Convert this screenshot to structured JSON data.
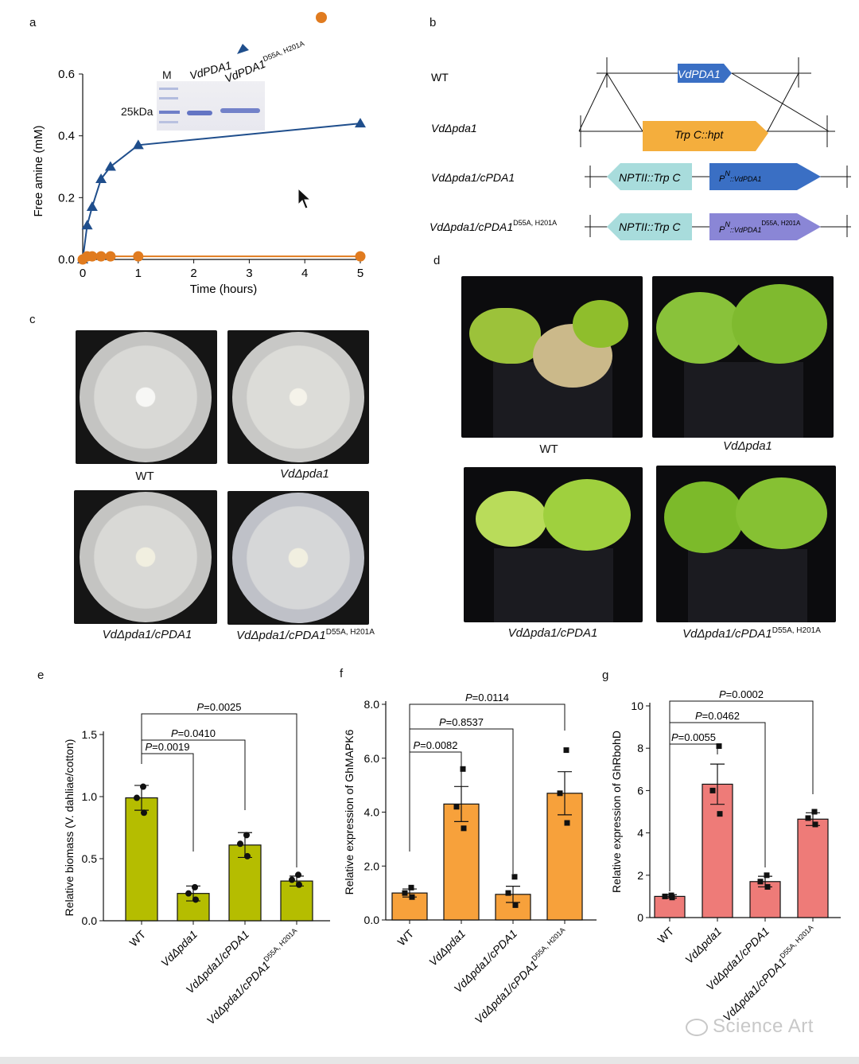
{
  "panels": {
    "a": "a",
    "b": "b",
    "c": "c",
    "d": "d",
    "e": "e",
    "f": "f",
    "g": "g"
  },
  "panel_a": {
    "ylabel": "Free amine (mM)",
    "xlabel": "Time (hours)",
    "gel": {
      "lane_m": "M",
      "lane_1": "VdPDA1",
      "lane_2": "VdPDA1",
      "lane_2_sup": "D55A, H201A",
      "marker": "25kDa"
    },
    "legend": {
      "series1": "VdPDA1",
      "series2": "VdPDA1",
      "series2_sup": "D55A, H201A"
    }
  },
  "panel_b": {
    "rows": [
      {
        "label": "WT",
        "gene": "VdPDA1"
      },
      {
        "label": "VdΔpda1",
        "gene": "Trp C::hpt"
      },
      {
        "label": "VdΔpda1/cPDA1",
        "left": "NPTII::Trp C",
        "right": "P",
        "right_sup": "N",
        "right_rest": "::VdPDA1"
      },
      {
        "label": "VdΔpda1/cPDA1",
        "label_sup": "D55A, H201A",
        "left": "NPTII::Trp C",
        "right": "P",
        "right_sup": "N",
        "right_rest": "::VdPDA1",
        "right_sup2": "D55A, H201A"
      }
    ]
  },
  "panel_c": {
    "captions": [
      "WT",
      "VdΔpda1",
      "VdΔpda1/cPDA1",
      "VdΔpda1/cPDA1"
    ],
    "caption4_sup": "D55A, H201A"
  },
  "panel_d": {
    "captions": [
      "WT",
      "VdΔpda1",
      "VdΔpda1/cPDA1",
      "VdΔpda1/cPDA1"
    ],
    "caption4_sup": "D55A, H201A"
  },
  "chart_data": [
    {
      "type": "line",
      "panel": "a",
      "xlabel": "Time (hours)",
      "ylabel": "Free amine (mM)",
      "xlim": [
        0,
        5
      ],
      "ylim": [
        0,
        0.6
      ],
      "xticks": [
        "0",
        "1",
        "2",
        "3",
        "4",
        "5"
      ],
      "yticks": [
        "0.0",
        "0.2",
        "0.4",
        "0.6"
      ],
      "series": [
        {
          "name": "VdPDA1",
          "color": "#1f4e8c",
          "marker": "triangle",
          "x": [
            0,
            0.08,
            0.17,
            0.33,
            0.5,
            1,
            5
          ],
          "y": [
            0,
            0.11,
            0.17,
            0.26,
            0.3,
            0.37,
            0.44
          ]
        },
        {
          "name": "VdPDA1 D55A, H201A",
          "color": "#e07b1f",
          "marker": "circle",
          "x": [
            0,
            0.08,
            0.17,
            0.33,
            0.5,
            1,
            5
          ],
          "y": [
            0,
            0.01,
            0.01,
            0.01,
            0.01,
            0.01,
            0.01
          ]
        }
      ]
    },
    {
      "type": "bar",
      "panel": "e",
      "ylabel": "Relative biomass (V. dahliae/cotton)",
      "color": "#b5bd00",
      "ylim": [
        0,
        1.5
      ],
      "yticks": [
        "0.0",
        "0.5",
        "1.0",
        "1.5"
      ],
      "categories": [
        "WT",
        "VdΔpda1",
        "VdΔpda1/cPDA1",
        "VdΔpda1/cPDA1"
      ],
      "cat4_sup": "D55A, H201A",
      "values": [
        0.99,
        0.22,
        0.61,
        0.32
      ],
      "errors": [
        0.1,
        0.06,
        0.1,
        0.04
      ],
      "points": [
        [
          1.08,
          0.99,
          0.87
        ],
        [
          0.27,
          0.22,
          0.17
        ],
        [
          0.69,
          0.62,
          0.52
        ],
        [
          0.37,
          0.33,
          0.29
        ]
      ],
      "comparisons": [
        {
          "label": "P=0.0019",
          "to": 1
        },
        {
          "label": "P=0.0410",
          "to": 2
        },
        {
          "label": "P=0.0025",
          "to": 3
        }
      ]
    },
    {
      "type": "bar",
      "panel": "f",
      "ylabel": "Relative expression of GhMAPK6",
      "color": "#f7a13b",
      "ylim": [
        0,
        8
      ],
      "yticks": [
        "0.0",
        "2.0",
        "4.0",
        "6.0",
        "8.0"
      ],
      "categories": [
        "WT",
        "VdΔpda1",
        "VdΔpda1/cPDA1",
        "VdΔpda1/cPDA1"
      ],
      "cat4_sup": "D55A, H201A",
      "values": [
        1.0,
        4.3,
        0.95,
        4.7
      ],
      "errors": [
        0.15,
        0.65,
        0.3,
        0.8
      ],
      "points": [
        [
          1.2,
          1.0,
          0.85
        ],
        [
          5.6,
          4.2,
          3.4
        ],
        [
          1.6,
          1.0,
          0.55
        ],
        [
          6.3,
          4.7,
          3.6
        ]
      ],
      "comparisons": [
        {
          "label": "P=0.0082",
          "to": 1
        },
        {
          "label": "P=0.8537",
          "to": 2
        },
        {
          "label": "P=0.0114",
          "to": 3
        }
      ]
    },
    {
      "type": "bar",
      "panel": "g",
      "ylabel": "Relative expression of GhRbohD",
      "color": "#ee7b78",
      "ylim": [
        0,
        10
      ],
      "yticks": [
        "0",
        "2",
        "4",
        "6",
        "8",
        "10"
      ],
      "categories": [
        "WT",
        "VdΔpda1",
        "VdΔpda1/cPDA1",
        "VdΔpda1/cPDA1"
      ],
      "cat4_sup": "D55A, H201A",
      "values": [
        1.0,
        6.3,
        1.7,
        4.65
      ],
      "errors": [
        0.08,
        0.95,
        0.25,
        0.3
      ],
      "points": [
        [
          1.05,
          1.0,
          0.95
        ],
        [
          8.1,
          6.0,
          4.9
        ],
        [
          2.0,
          1.7,
          1.45
        ],
        [
          5.0,
          4.7,
          4.4
        ]
      ],
      "comparisons": [
        {
          "label": "P=0.0055",
          "to": 1
        },
        {
          "label": "P=0.0462",
          "to": 2
        },
        {
          "label": "P=0.0002",
          "to": 3
        }
      ]
    }
  ],
  "watermark": "Science Art"
}
